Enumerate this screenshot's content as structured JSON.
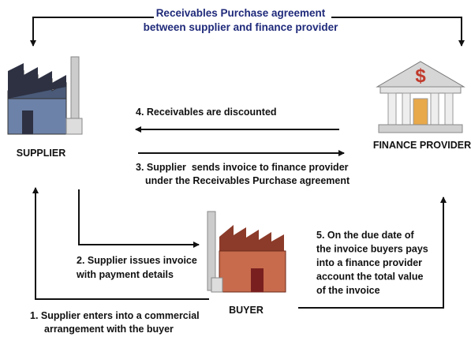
{
  "title": [
    "Receivables Purchase agreement",
    "between supplier and finance provider"
  ],
  "nodes": [
    {
      "label": "SUPPLIER"
    },
    {
      "label": "FINANCE PROVIDER"
    },
    {
      "label": "BUYER"
    }
  ],
  "steps": [
    {
      "lines": [
        "1. Supplier enters into a commercial",
        "arrangement with the buyer"
      ]
    },
    {
      "lines": [
        "2. Supplier issues invoice",
        "with payment details"
      ]
    },
    {
      "lines": [
        "3. Supplier  sends invoice to finance provider",
        "under the Receivables Purchase agreement"
      ]
    },
    {
      "lines": [
        "4. Receivables are discounted"
      ]
    },
    {
      "lines": [
        "5. On the due date of",
        "the invoice buyers pays",
        "into a finance provider",
        "account the total value",
        "of the invoice"
      ]
    }
  ]
}
